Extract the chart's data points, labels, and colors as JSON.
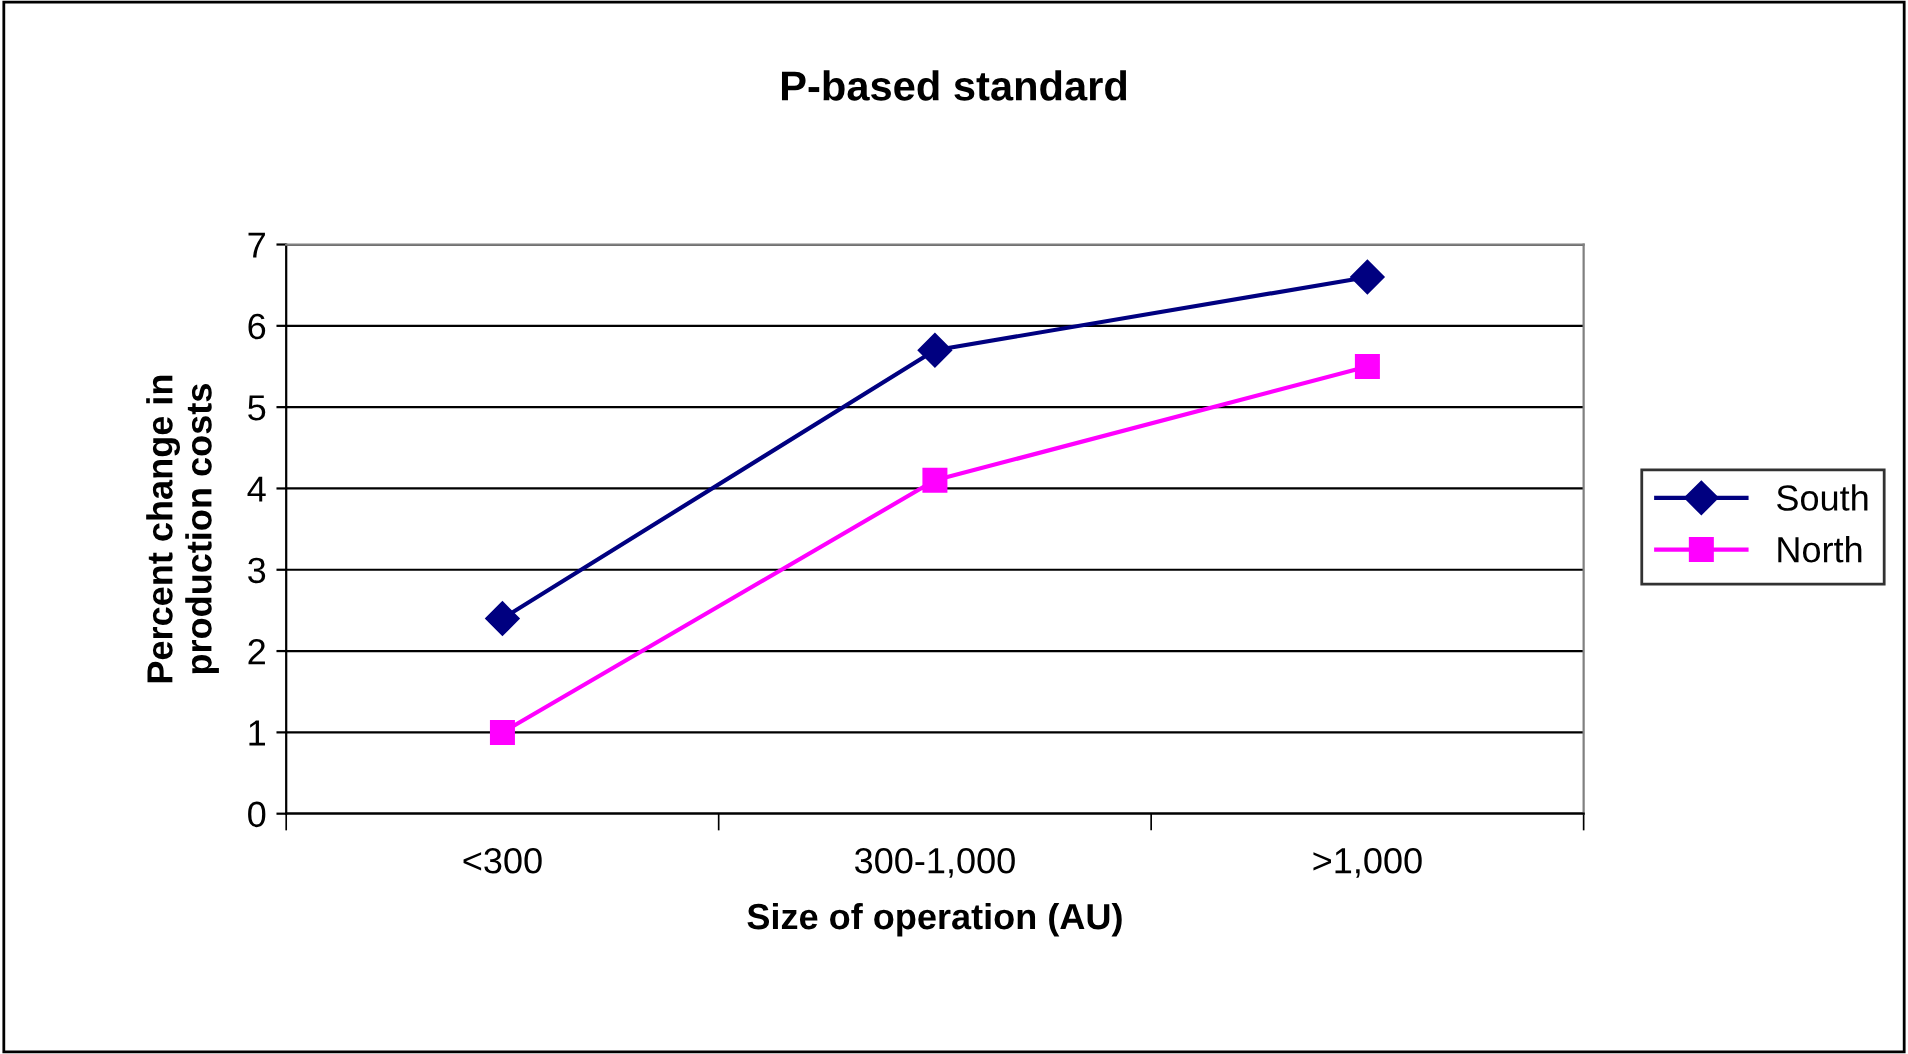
{
  "chart_data": {
    "type": "line",
    "title": "P-based standard",
    "xlabel": "Size of operation (AU)",
    "ylabel": "Percent change in\nproduction costs",
    "categories": [
      "<300",
      "300-1,000",
      ">1,000"
    ],
    "series": [
      {
        "name": "South",
        "color": "#000080",
        "marker": "diamond",
        "values": [
          2.4,
          5.7,
          6.6
        ]
      },
      {
        "name": "North",
        "color": "#ff00ff",
        "marker": "square",
        "values": [
          1.0,
          4.1,
          5.5
        ]
      }
    ],
    "ylim": [
      0,
      7
    ],
    "yticks": [
      0,
      1,
      2,
      3,
      4,
      5,
      6,
      7
    ],
    "grid": "y",
    "legend": "right",
    "line_style": "solid"
  }
}
